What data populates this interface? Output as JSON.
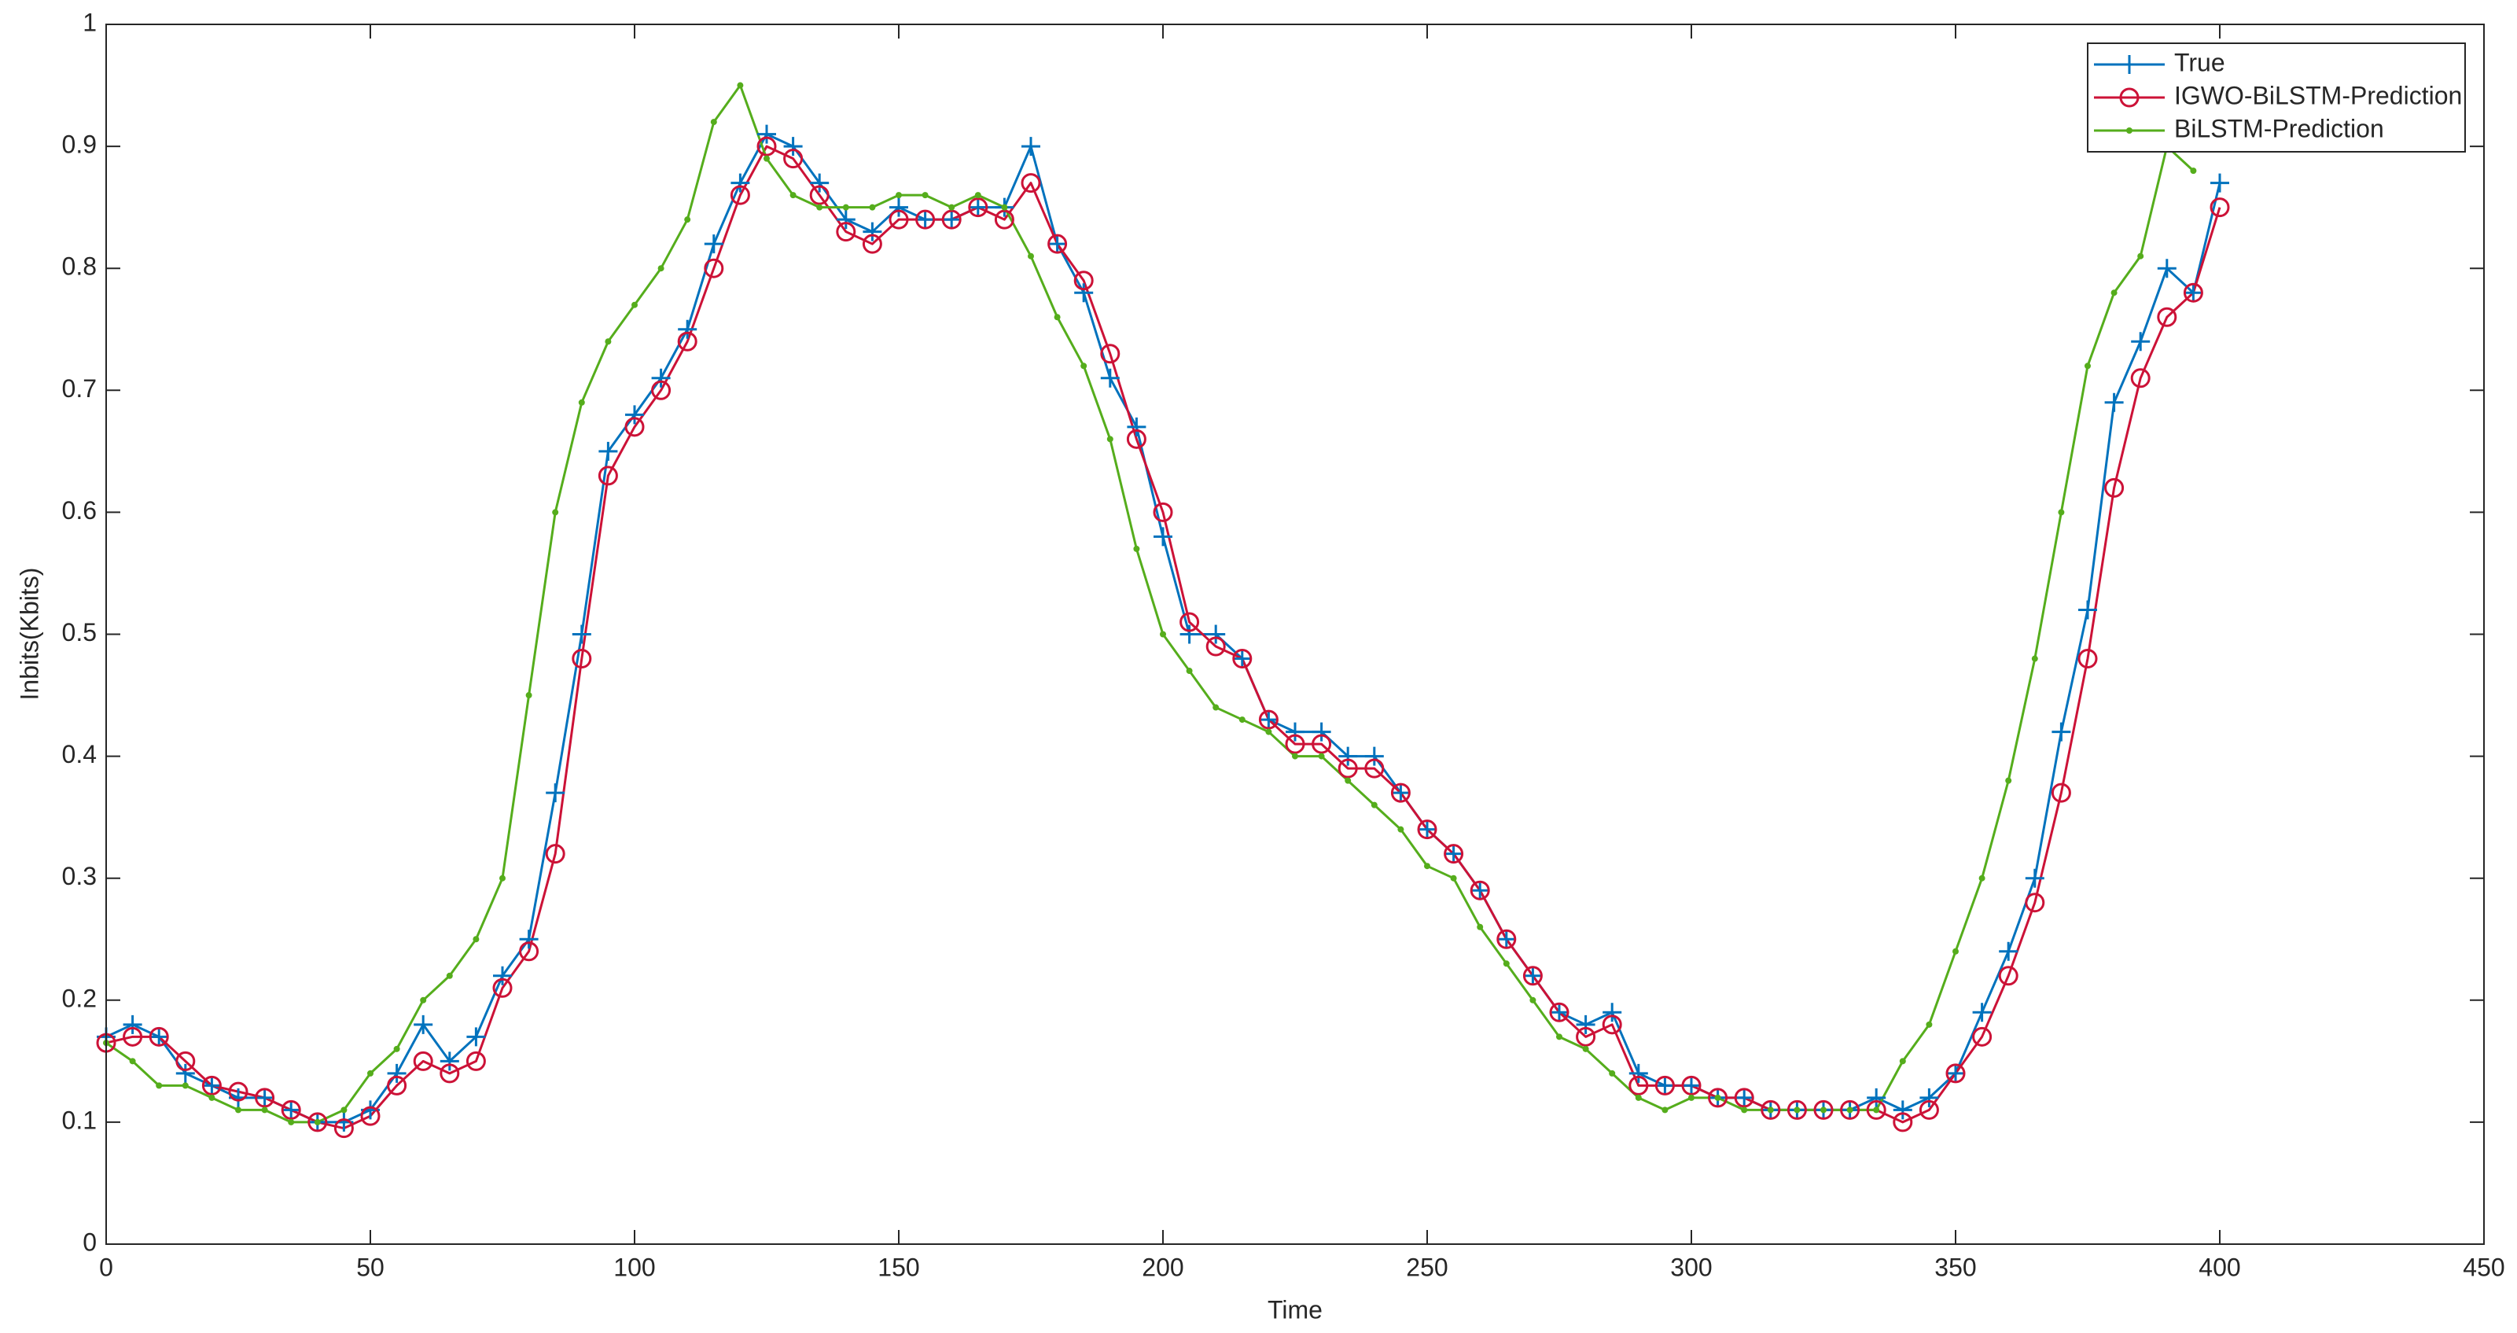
{
  "chart_data": {
    "type": "line",
    "xlabel": "Time",
    "ylabel": "Inbits(Kbits)",
    "x": [
      0,
      5,
      10,
      15,
      20,
      25,
      30,
      35,
      40,
      45,
      50,
      55,
      60,
      65,
      70,
      75,
      80,
      85,
      90,
      95,
      100,
      105,
      110,
      115,
      120,
      125,
      130,
      135,
      140,
      145,
      150,
      155,
      160,
      165,
      170,
      175,
      180,
      185,
      190,
      195,
      200,
      205,
      210,
      215,
      220,
      225,
      230,
      235,
      240,
      245,
      250,
      255,
      260,
      265,
      270,
      275,
      280,
      285,
      290,
      295,
      300,
      305,
      310,
      315,
      320,
      325,
      330,
      335,
      340,
      345,
      350,
      355,
      360,
      365,
      370,
      375,
      380,
      385,
      390,
      395,
      400
    ],
    "series": [
      {
        "name": "True",
        "color": "#0072bd",
        "marker": "plus",
        "values": [
          0.17,
          0.18,
          0.17,
          0.14,
          0.13,
          0.12,
          0.12,
          0.11,
          0.1,
          0.1,
          0.11,
          0.14,
          0.18,
          0.15,
          0.17,
          0.22,
          0.25,
          0.37,
          0.5,
          0.65,
          0.68,
          0.71,
          0.75,
          0.82,
          0.87,
          0.91,
          0.9,
          0.87,
          0.84,
          0.83,
          0.85,
          0.84,
          0.84,
          0.85,
          0.85,
          0.9,
          0.82,
          0.78,
          0.71,
          0.67,
          0.58,
          0.5,
          0.5,
          0.48,
          0.43,
          0.42,
          0.42,
          0.4,
          0.4,
          0.37,
          0.34,
          0.32,
          0.29,
          0.25,
          0.22,
          0.19,
          0.18,
          0.19,
          0.14,
          0.13,
          0.13,
          0.12,
          0.12,
          0.11,
          0.11,
          0.11,
          0.11,
          0.12,
          0.11,
          0.12,
          0.14,
          0.19,
          0.24,
          0.3,
          0.42,
          0.52,
          0.69,
          0.74,
          0.8,
          0.78,
          0.87
        ]
      },
      {
        "name": "IGWO-BiLSTM-Prediction",
        "color": "#cc1237",
        "marker": "circle",
        "values": [
          0.165,
          0.17,
          0.17,
          0.15,
          0.13,
          0.125,
          0.12,
          0.11,
          0.1,
          0.095,
          0.105,
          0.13,
          0.15,
          0.14,
          0.15,
          0.21,
          0.24,
          0.32,
          0.48,
          0.63,
          0.67,
          0.7,
          0.74,
          0.8,
          0.86,
          0.9,
          0.89,
          0.86,
          0.83,
          0.82,
          0.84,
          0.84,
          0.84,
          0.85,
          0.84,
          0.87,
          0.82,
          0.79,
          0.73,
          0.66,
          0.6,
          0.51,
          0.49,
          0.48,
          0.43,
          0.41,
          0.41,
          0.39,
          0.39,
          0.37,
          0.34,
          0.32,
          0.29,
          0.25,
          0.22,
          0.19,
          0.17,
          0.18,
          0.13,
          0.13,
          0.13,
          0.12,
          0.12,
          0.11,
          0.11,
          0.11,
          0.11,
          0.11,
          0.1,
          0.11,
          0.14,
          0.17,
          0.22,
          0.28,
          0.37,
          0.48,
          0.62,
          0.71,
          0.76,
          0.78,
          0.85
        ]
      },
      {
        "name": "BiLSTM-Prediction",
        "color": "#55ad1c",
        "marker": "dot",
        "values": [
          0.165,
          0.15,
          0.13,
          0.13,
          0.12,
          0.11,
          0.11,
          0.1,
          0.1,
          0.11,
          0.14,
          0.16,
          0.2,
          0.22,
          0.25,
          0.3,
          0.45,
          0.6,
          0.69,
          0.74,
          0.77,
          0.8,
          0.84,
          0.92,
          0.95,
          0.89,
          0.86,
          0.85,
          0.85,
          0.85,
          0.86,
          0.86,
          0.85,
          0.86,
          0.85,
          0.81,
          0.76,
          0.72,
          0.66,
          0.57,
          0.5,
          0.47,
          0.44,
          0.43,
          0.42,
          0.4,
          0.4,
          0.38,
          0.36,
          0.34,
          0.31,
          0.3,
          0.26,
          0.23,
          0.2,
          0.17,
          0.16,
          0.14,
          0.12,
          0.11,
          0.12,
          0.12,
          0.11,
          0.11,
          0.11,
          0.11,
          0.11,
          0.11,
          0.15,
          0.18,
          0.24,
          0.3,
          0.38,
          0.48,
          0.6,
          0.72,
          0.78,
          0.81,
          0.9,
          0.88,
          null
        ]
      }
    ],
    "xlim": [
      0,
      450
    ],
    "xticks": [
      0,
      50,
      100,
      150,
      200,
      250,
      300,
      350,
      400,
      450
    ],
    "ylim": [
      0,
      1
    ],
    "yticks": [
      0,
      0.1,
      0.2,
      0.3,
      0.4,
      0.5,
      0.6,
      0.7,
      0.8,
      0.9,
      1
    ],
    "legend": "northeast",
    "grid": false
  }
}
